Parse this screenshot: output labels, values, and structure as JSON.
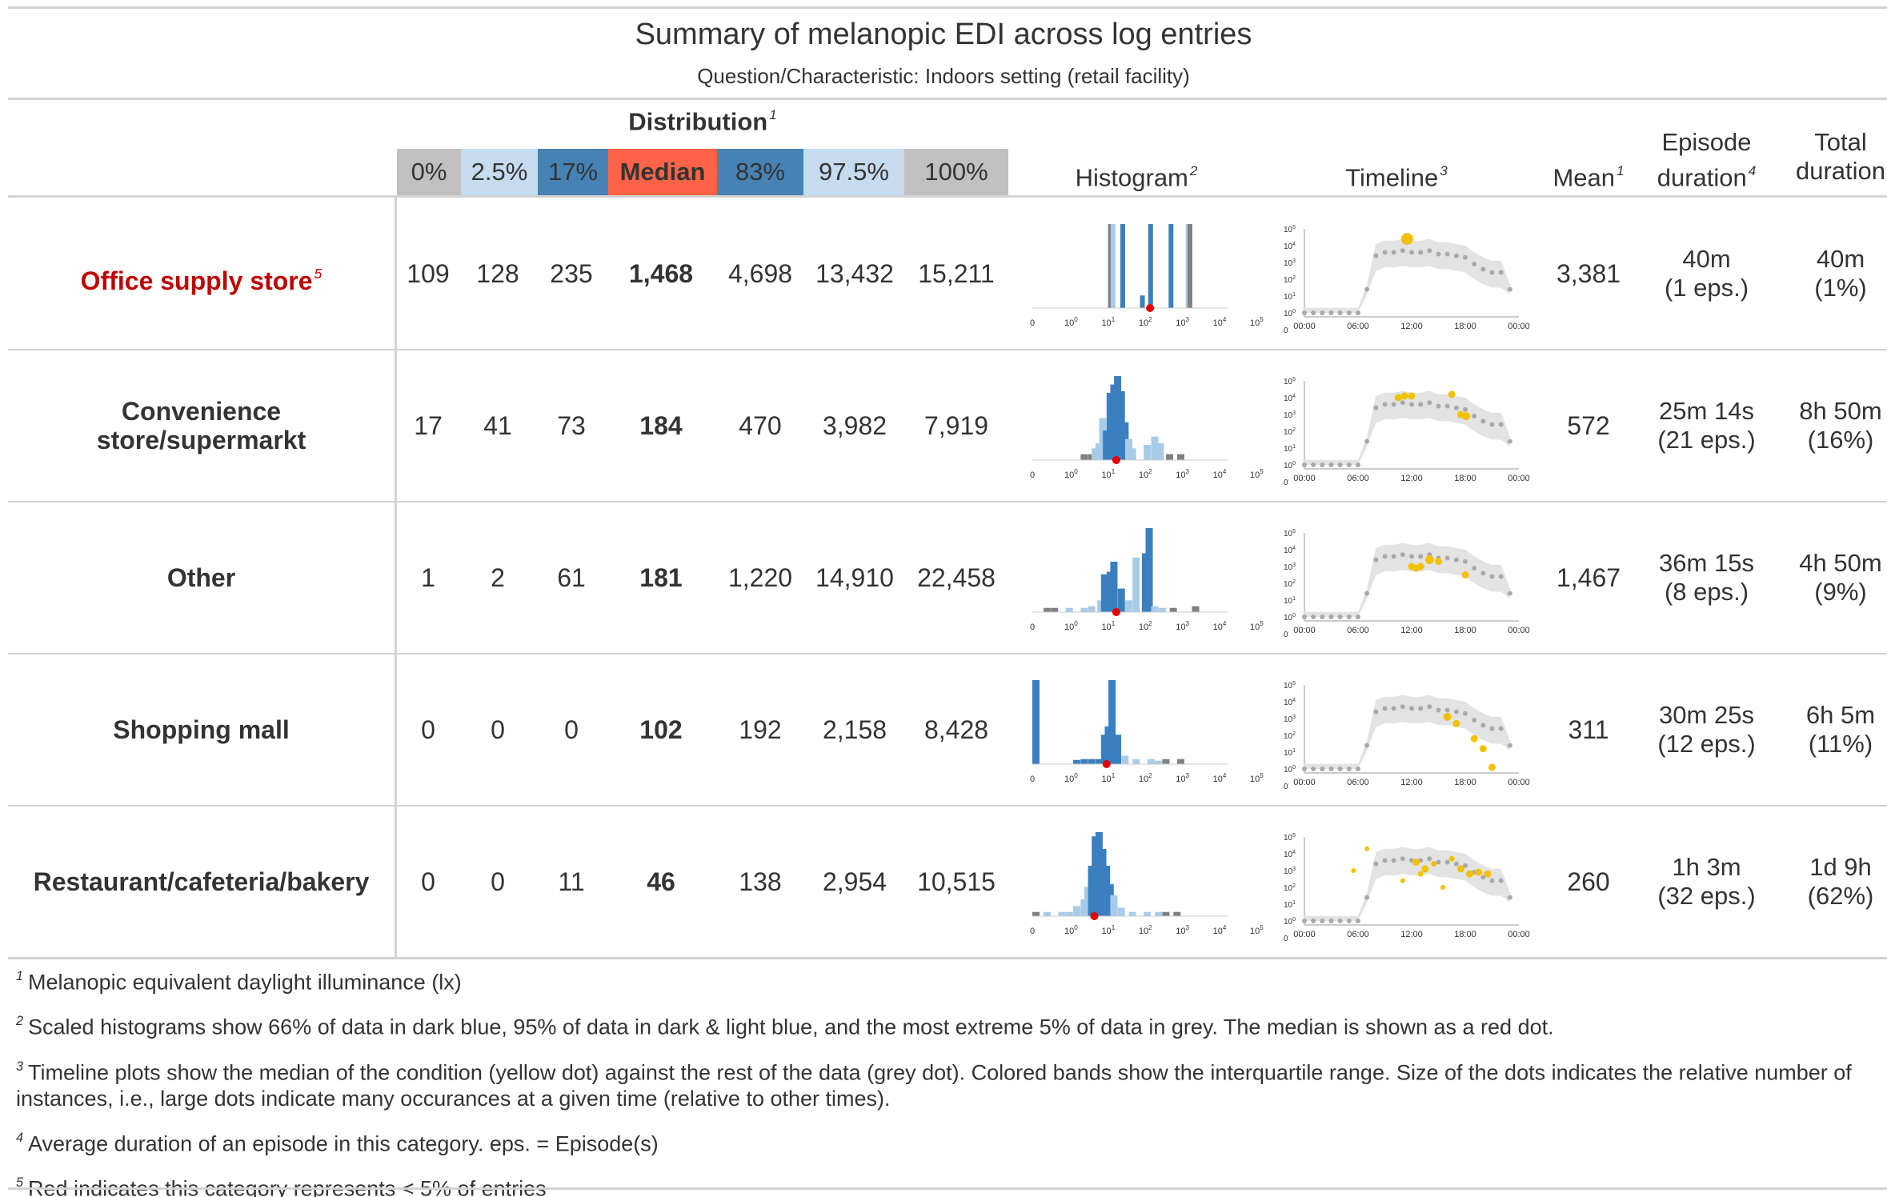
{
  "title": "Summary of melanopic EDI across log entries",
  "subtitle": "Question/Characteristic: Indoors setting (retail facility)",
  "spanner": {
    "label": "Distribution",
    "footnote": "1"
  },
  "quantiles": [
    {
      "label": "0%",
      "bg": "#c0c0c0",
      "fg": "#333333"
    },
    {
      "label": "2.5%",
      "bg": "#c6dbef",
      "fg": "#333333"
    },
    {
      "label": "17%",
      "bg": "#4682b4",
      "fg": "#333333"
    },
    {
      "label": "Median",
      "bg": "#ff6347",
      "fg": "#333333",
      "bold": true
    },
    {
      "label": "83%",
      "bg": "#4682b4",
      "fg": "#333333"
    },
    {
      "label": "97.5%",
      "bg": "#c6dbef",
      "fg": "#333333"
    },
    {
      "label": "100%",
      "bg": "#c0c0c0",
      "fg": "#333333"
    }
  ],
  "headers": {
    "histogram": {
      "label": "Histogram",
      "footnote": "2"
    },
    "timeline": {
      "label": "Timeline",
      "footnote": "3"
    },
    "mean": {
      "label": "Mean",
      "footnote": "1"
    },
    "episode": {
      "line1": "Episode",
      "line2": "duration",
      "footnote": "4"
    },
    "total": {
      "line1": "Total",
      "line2": "duration"
    }
  },
  "hist_axis_labels": [
    "0",
    "10",
    "10",
    "10",
    "10",
    "10",
    "10"
  ],
  "hist_axis_sups": [
    "",
    "0",
    "1",
    "2",
    "3",
    "4",
    "5"
  ],
  "timeline_y_labels": [
    "10",
    "10",
    "10",
    "10",
    "10",
    "10",
    "0"
  ],
  "timeline_y_sups": [
    "5",
    "4",
    "3",
    "2",
    "1",
    "0",
    ""
  ],
  "timeline_x_labels": [
    "00:00",
    "06:00",
    "12:00",
    "18:00",
    "00:00"
  ],
  "colors": {
    "dark_blue": "#3a7fc0",
    "light_blue": "#a8cbe8",
    "grey": "#808080",
    "median_red": "#e00000",
    "yellow": "#f2c200",
    "band": "#e3e3e3",
    "grey_dot": "#a9a9a9",
    "red_label": "#c00000"
  },
  "chart_data": {
    "type": "table",
    "rows": [
      {
        "label": "Office supply store",
        "footnote": "5",
        "highlight": true,
        "q0": "109",
        "q2_5": "128",
        "q17": "235",
        "median": "1,468",
        "q83": "4,698",
        "q97_5": "13,432",
        "q100": "15,211",
        "mean": "3,381",
        "episode1": "40m",
        "episode2": "(1 eps.)",
        "total1": "40m",
        "total2": "(1%)",
        "hist_median_log": 3.17,
        "hist": [
          [
            2.04,
            1.0,
            "g"
          ],
          [
            2.11,
            1.0,
            "l"
          ],
          [
            2.37,
            1.0,
            "d"
          ],
          [
            2.9,
            0.15,
            "d"
          ],
          [
            3.12,
            1.0,
            "d"
          ],
          [
            3.67,
            1.0,
            "d"
          ],
          [
            4.13,
            1.0,
            "l"
          ],
          [
            4.18,
            1.0,
            "g"
          ]
        ],
        "yellow": [
          [
            11.5,
            4.4,
            13
          ]
        ]
      },
      {
        "label": "Convenience store/supermarkt",
        "footnote": "",
        "q0": "17",
        "q2_5": "41",
        "q17": "73",
        "median": "184",
        "q83": "470",
        "q97_5": "3,982",
        "q100": "7,919",
        "mean": "572",
        "episode1": "25m 14s",
        "episode2": "(21 eps.)",
        "total1": "8h 50m",
        "total2": "(16%)",
        "hist_median_log": 2.26,
        "hist": [
          [
            1.3,
            0.07,
            "g"
          ],
          [
            1.5,
            0.07,
            "g"
          ],
          [
            1.6,
            0.14,
            "l"
          ],
          [
            1.7,
            0.2,
            "l"
          ],
          [
            1.8,
            0.5,
            "l"
          ],
          [
            1.9,
            0.35,
            "d"
          ],
          [
            2.0,
            0.8,
            "d"
          ],
          [
            2.1,
            0.9,
            "d"
          ],
          [
            2.2,
            1.0,
            "d"
          ],
          [
            2.3,
            0.82,
            "d"
          ],
          [
            2.4,
            0.45,
            "d"
          ],
          [
            2.5,
            0.25,
            "l"
          ],
          [
            2.6,
            0.14,
            "l"
          ],
          [
            3.0,
            0.18,
            "l"
          ],
          [
            3.2,
            0.28,
            "l"
          ],
          [
            3.35,
            0.2,
            "l"
          ],
          [
            3.6,
            0.07,
            "g"
          ],
          [
            3.9,
            0.07,
            "g"
          ]
        ],
        "yellow": [
          [
            10.5,
            4.0,
            7
          ],
          [
            11.2,
            4.1,
            7
          ],
          [
            12.0,
            4.1,
            7
          ],
          [
            16.5,
            4.2,
            7
          ],
          [
            17.5,
            3.0,
            7
          ],
          [
            18.1,
            2.9,
            8
          ]
        ]
      },
      {
        "label": "Other",
        "footnote": "",
        "q0": "1",
        "q2_5": "2",
        "q17": "61",
        "median": "181",
        "q83": "1,220",
        "q97_5": "14,910",
        "q100": "22,458",
        "mean": "1,467",
        "episode1": "36m 15s",
        "episode2": "(8 eps.)",
        "total1": "4h 50m",
        "total2": "(9%)",
        "hist_median_log": 2.26,
        "hist": [
          [
            0.3,
            0.05,
            "g"
          ],
          [
            0.5,
            0.05,
            "g"
          ],
          [
            0.9,
            0.05,
            "l"
          ],
          [
            1.3,
            0.05,
            "l"
          ],
          [
            1.5,
            0.07,
            "l"
          ],
          [
            1.75,
            0.14,
            "l"
          ],
          [
            1.85,
            0.45,
            "d"
          ],
          [
            2.0,
            0.48,
            "d"
          ],
          [
            2.1,
            0.6,
            "d"
          ],
          [
            2.3,
            0.28,
            "d"
          ],
          [
            2.5,
            0.14,
            "l"
          ],
          [
            2.7,
            0.65,
            "l"
          ],
          [
            2.95,
            0.7,
            "d"
          ],
          [
            3.05,
            1.0,
            "d"
          ],
          [
            3.2,
            0.07,
            "l"
          ],
          [
            3.4,
            0.05,
            "l"
          ],
          [
            3.7,
            0.05,
            "g"
          ],
          [
            4.3,
            0.07,
            "g"
          ]
        ],
        "yellow": [
          [
            12.0,
            3.0,
            7
          ],
          [
            12.5,
            2.9,
            7
          ],
          [
            13.0,
            3.0,
            7
          ],
          [
            14.0,
            3.4,
            9
          ],
          [
            15.0,
            3.3,
            7
          ],
          [
            18.0,
            2.5,
            7
          ]
        ]
      },
      {
        "label": "Shopping mall",
        "footnote": "",
        "q0": "0",
        "q2_5": "0",
        "q17": "0",
        "median": "102",
        "q83": "192",
        "q97_5": "2,158",
        "q100": "8,428",
        "mean": "311",
        "episode1": "30m 25s",
        "episode2": "(12 eps.)",
        "total1": "6h 5m",
        "total2": "(11%)",
        "hist_median_log": 2.0,
        "hist": [
          [
            0.0,
            1.0,
            "d"
          ],
          [
            1.1,
            0.05,
            "d"
          ],
          [
            1.3,
            0.06,
            "d"
          ],
          [
            1.5,
            0.06,
            "d"
          ],
          [
            1.7,
            0.06,
            "d"
          ],
          [
            1.85,
            0.35,
            "d"
          ],
          [
            1.95,
            0.45,
            "d"
          ],
          [
            2.05,
            1.0,
            "d"
          ],
          [
            2.2,
            0.35,
            "d"
          ],
          [
            2.4,
            0.1,
            "l"
          ],
          [
            2.7,
            0.06,
            "l"
          ],
          [
            3.1,
            0.06,
            "l"
          ],
          [
            3.3,
            0.04,
            "l"
          ],
          [
            3.5,
            0.06,
            "g"
          ],
          [
            3.9,
            0.06,
            "g"
          ]
        ],
        "yellow": [
          [
            16.0,
            3.1,
            8
          ],
          [
            17.0,
            2.7,
            7
          ],
          [
            19.0,
            1.8,
            7
          ],
          [
            20.0,
            1.2,
            7
          ],
          [
            21.0,
            0.1,
            7
          ]
        ]
      },
      {
        "label": "Restaurant/cafeteria/bakery",
        "footnote": "",
        "q0": "0",
        "q2_5": "0",
        "q17": "11",
        "median": "46",
        "q83": "138",
        "q97_5": "2,954",
        "q100": "10,515",
        "mean": "260",
        "episode1": "1h 3m",
        "episode2": "(32 eps.)",
        "total1": "1d 9h",
        "total2": "(62%)",
        "hist_median_log": 1.67,
        "hist": [
          [
            0.0,
            0.05,
            "g"
          ],
          [
            0.3,
            0.05,
            "l"
          ],
          [
            0.7,
            0.05,
            "l"
          ],
          [
            0.9,
            0.05,
            "l"
          ],
          [
            1.1,
            0.12,
            "l"
          ],
          [
            1.3,
            0.2,
            "l"
          ],
          [
            1.4,
            0.35,
            "l"
          ],
          [
            1.5,
            0.6,
            "d"
          ],
          [
            1.6,
            0.95,
            "d"
          ],
          [
            1.7,
            1.0,
            "d"
          ],
          [
            1.8,
            0.8,
            "d"
          ],
          [
            1.9,
            0.6,
            "d"
          ],
          [
            2.0,
            0.38,
            "d"
          ],
          [
            2.1,
            0.25,
            "l"
          ],
          [
            2.3,
            0.1,
            "l"
          ],
          [
            2.6,
            0.05,
            "l"
          ],
          [
            3.0,
            0.05,
            "l"
          ],
          [
            3.3,
            0.05,
            "l"
          ],
          [
            3.5,
            0.05,
            "g"
          ],
          [
            3.8,
            0.05,
            "g"
          ]
        ],
        "yellow": [
          [
            7.0,
            4.3,
            4
          ],
          [
            5.5,
            3.0,
            4
          ],
          [
            12.5,
            3.5,
            7
          ],
          [
            13.5,
            3.1,
            7
          ],
          [
            14.5,
            3.4,
            5
          ],
          [
            16.5,
            3.7,
            5
          ],
          [
            17.5,
            3.1,
            7
          ],
          [
            18.5,
            2.8,
            7
          ],
          [
            19.5,
            2.9,
            7
          ],
          [
            20.5,
            2.8,
            7
          ],
          [
            13.0,
            2.8,
            5
          ],
          [
            11.0,
            2.4,
            4
          ],
          [
            15.5,
            2.0,
            4
          ]
        ]
      }
    ],
    "grey_timeline": [
      [
        0,
        0
      ],
      [
        1,
        0
      ],
      [
        2,
        0
      ],
      [
        3,
        0
      ],
      [
        4,
        0
      ],
      [
        5,
        0
      ],
      [
        6,
        0
      ],
      [
        7,
        1.4
      ],
      [
        8,
        3.4
      ],
      [
        9,
        3.6
      ],
      [
        10,
        3.6
      ],
      [
        11,
        3.7
      ],
      [
        12,
        3.6
      ],
      [
        13,
        3.6
      ],
      [
        14,
        3.7
      ],
      [
        15,
        3.5
      ],
      [
        16,
        3.5
      ],
      [
        17,
        3.4
      ],
      [
        18,
        3.3
      ],
      [
        19,
        2.9
      ],
      [
        20,
        2.6
      ],
      [
        21,
        2.4
      ],
      [
        22,
        2.4
      ],
      [
        23,
        1.4
      ]
    ]
  },
  "footnotes": [
    {
      "mark": "1",
      "text": "Melanopic equivalent daylight illuminance (lx)"
    },
    {
      "mark": "2",
      "text": "Scaled histograms show 66% of data in dark blue, 95% of data in dark & light blue, and the most extreme 5% of data in grey. The median is shown as a red dot."
    },
    {
      "mark": "3",
      "text": "Timeline plots show the median of the condition (yellow dot) against the rest of the data (grey dot). Colored bands show the interquartile range. Size of the dots indicates the relative number of instances, i.e., large dots indicate many occurances at a given time (relative to other times)."
    },
    {
      "mark": "4",
      "text": "Average duration of an episode in this category. eps. = Episode(s)"
    },
    {
      "mark": "5",
      "text": "Red indicates this category represents < 5% of entries"
    }
  ]
}
